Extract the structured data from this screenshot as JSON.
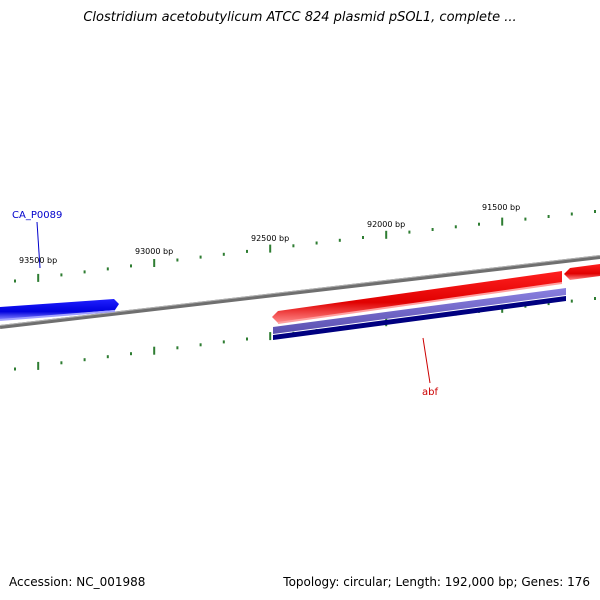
{
  "title": "Clostridium acetobutylicum ATCC 824 plasmid pSOL1, complete ...",
  "ticks": [
    {
      "label": "93500 bp"
    },
    {
      "label": "93000 bp"
    },
    {
      "label": "92500 bp"
    },
    {
      "label": "92000 bp"
    },
    {
      "label": "91500 bp"
    }
  ],
  "genes": [
    {
      "name": "CA_P0089",
      "color": "#1a1acc"
    },
    {
      "name": "abf",
      "color": "#cc0000"
    }
  ],
  "colors": {
    "backbone": "#808080",
    "tick": "#2e7d32",
    "forward_feature": "#ee0000",
    "reverse_feature": "#0000ee",
    "cds_band": "#6a5acd",
    "cds_band_dark": "#000080"
  },
  "footer": {
    "accession": "Accession: NC_001988",
    "topology": "Topology: circular; Length: 192,000 bp; Genes: 176"
  }
}
